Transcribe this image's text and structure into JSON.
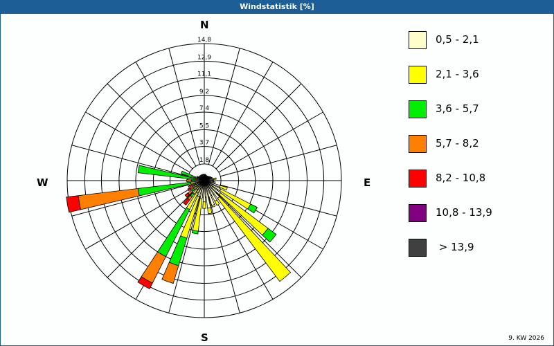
{
  "window": {
    "title": "Windstatistik [%]",
    "footer": "9. KW 2026"
  },
  "compass": {
    "n": "N",
    "e": "E",
    "s": "S",
    "w": "W"
  },
  "legend": {
    "items": [
      {
        "label": "0,5 - 2,1",
        "color": "#ffffcc"
      },
      {
        "label": "2,1 - 3,6",
        "color": "#ffff00"
      },
      {
        "label": "3,6 - 5,7",
        "color": "#00ee00"
      },
      {
        "label": "5,7 - 8,2",
        "color": "#ff8000"
      },
      {
        "label": "8,2 - 10,8",
        "color": "#ff0000"
      },
      {
        "label": "10,8 - 13,9",
        "color": "#800080"
      },
      {
        "label": " > 13,9",
        "color": "#404040"
      }
    ]
  },
  "chart_data": {
    "type": "windrose",
    "title": "Windstatistik [%]",
    "subtitle": "9. KW 2026",
    "radial_unit": "%",
    "radial_ticks": [
      "1,8",
      "3,7",
      "5,5",
      "7,4",
      "9,2",
      "11,1",
      "12,9",
      "14,8"
    ],
    "radial_tick_values": [
      1.8,
      3.7,
      5.5,
      7.4,
      9.2,
      11.1,
      12.9,
      14.8
    ],
    "rmax": 14.8,
    "grid": true,
    "spokes_deg": 15,
    "direction_labels": [
      "N",
      "E",
      "S",
      "W"
    ],
    "legend_position": "right",
    "speed_classes": [
      "0,5 - 2,1",
      "2,1 - 3,6",
      "3,6 - 5,7",
      "5,7 - 8,2",
      "8,2 - 10,8",
      "10,8 - 13,9",
      "> 13,9"
    ],
    "note": "cumulative radius (%) per speed class, per direction in degrees clockwise from North",
    "directions": [
      {
        "deg": 0,
        "cumulative": [
          0.6,
          0.7,
          0.7,
          0.7,
          0.7,
          0.7,
          0.7
        ]
      },
      {
        "deg": 10,
        "cumulative": [
          0.6,
          0.7,
          0.7,
          0.7,
          0.7,
          0.7,
          0.7
        ]
      },
      {
        "deg": 20,
        "cumulative": [
          0.5,
          0.6,
          0.6,
          0.6,
          0.6,
          0.6,
          0.6
        ]
      },
      {
        "deg": 30,
        "cumulative": [
          0.5,
          0.6,
          0.6,
          0.6,
          0.6,
          0.6,
          0.6
        ]
      },
      {
        "deg": 40,
        "cumulative": [
          0.5,
          0.6,
          0.6,
          0.6,
          0.6,
          0.6,
          0.6
        ]
      },
      {
        "deg": 50,
        "cumulative": [
          0.6,
          0.7,
          0.7,
          0.7,
          0.7,
          0.7,
          0.7
        ]
      },
      {
        "deg": 60,
        "cumulative": [
          0.7,
          0.8,
          0.8,
          0.8,
          0.8,
          0.8,
          0.8
        ]
      },
      {
        "deg": 70,
        "cumulative": [
          0.8,
          0.9,
          0.9,
          0.9,
          0.9,
          0.9,
          0.9
        ]
      },
      {
        "deg": 80,
        "cumulative": [
          1.0,
          1.3,
          1.3,
          1.3,
          1.3,
          1.3,
          1.3
        ]
      },
      {
        "deg": 90,
        "cumulative": [
          0.9,
          1.0,
          1.0,
          1.0,
          1.0,
          1.0,
          1.0
        ]
      },
      {
        "deg": 100,
        "cumulative": [
          1.0,
          1.2,
          1.2,
          1.2,
          1.2,
          1.2,
          1.2
        ]
      },
      {
        "deg": 110,
        "cumulative": [
          1.8,
          2.6,
          2.6,
          2.6,
          2.6,
          2.6,
          2.6
        ]
      },
      {
        "deg": 120,
        "cumulative": [
          2.0,
          5.6,
          6.4,
          6.4,
          6.4,
          6.4,
          6.4
        ]
      },
      {
        "deg": 130,
        "cumulative": [
          2.2,
          8.6,
          9.7,
          9.7,
          9.7,
          9.7,
          9.7
        ]
      },
      {
        "deg": 140,
        "cumulative": [
          2.4,
          13.6,
          13.6,
          13.6,
          13.6,
          13.6,
          13.6
        ]
      },
      {
        "deg": 150,
        "cumulative": [
          2.5,
          3.0,
          3.0,
          3.0,
          3.0,
          3.0,
          3.0
        ]
      },
      {
        "deg": 160,
        "cumulative": [
          2.8,
          3.0,
          3.0,
          3.0,
          3.0,
          3.0,
          3.0
        ]
      },
      {
        "deg": 170,
        "cumulative": [
          3.0,
          3.6,
          3.6,
          3.6,
          3.6,
          3.6,
          3.6
        ]
      },
      {
        "deg": 180,
        "cumulative": [
          2.3,
          3.0,
          3.0,
          3.0,
          3.0,
          3.0,
          3.0
        ]
      },
      {
        "deg": 190,
        "cumulative": [
          2.0,
          5.5,
          5.8,
          5.8,
          5.8,
          5.8,
          5.8
        ]
      },
      {
        "deg": 200,
        "cumulative": [
          1.8,
          6.5,
          9.6,
          11.6,
          11.6,
          11.6,
          11.6
        ]
      },
      {
        "deg": 210,
        "cumulative": [
          1.5,
          3.5,
          9.2,
          12.4,
          13.1,
          13.1,
          13.1
        ]
      },
      {
        "deg": 220,
        "cumulative": [
          1.2,
          1.8,
          2.2,
          2.6,
          3.3,
          3.3,
          3.3
        ]
      },
      {
        "deg": 230,
        "cumulative": [
          1.0,
          1.4,
          1.7,
          2.2,
          2.6,
          2.6,
          2.6
        ]
      },
      {
        "deg": 240,
        "cumulative": [
          0.9,
          1.2,
          1.4,
          1.7,
          2.0,
          2.0,
          2.0
        ]
      },
      {
        "deg": 250,
        "cumulative": [
          0.8,
          1.0,
          1.2,
          1.4,
          1.7,
          1.7,
          1.7
        ]
      },
      {
        "deg": 260,
        "cumulative": [
          1.0,
          1.5,
          7.2,
          13.7,
          15.0,
          15.0,
          15.0
        ]
      },
      {
        "deg": 270,
        "cumulative": [
          0.8,
          1.0,
          1.4,
          1.9,
          1.9,
          1.9,
          1.9
        ]
      },
      {
        "deg": 280,
        "cumulative": [
          0.8,
          1.0,
          7.2,
          7.2,
          7.2,
          7.2,
          7.2
        ]
      },
      {
        "deg": 290,
        "cumulative": [
          0.8,
          1.0,
          2.6,
          2.6,
          2.6,
          2.6,
          2.6
        ]
      },
      {
        "deg": 300,
        "cumulative": [
          0.7,
          0.9,
          0.9,
          0.9,
          0.9,
          0.9,
          0.9
        ]
      },
      {
        "deg": 310,
        "cumulative": [
          0.6,
          0.7,
          0.7,
          0.7,
          0.7,
          0.7,
          0.7
        ]
      },
      {
        "deg": 320,
        "cumulative": [
          0.6,
          0.7,
          0.7,
          0.7,
          0.7,
          0.7,
          0.7
        ]
      },
      {
        "deg": 330,
        "cumulative": [
          0.6,
          0.7,
          0.7,
          0.7,
          0.7,
          0.7,
          0.7
        ]
      },
      {
        "deg": 340,
        "cumulative": [
          0.6,
          0.7,
          0.7,
          0.7,
          0.7,
          0.7,
          0.7
        ]
      },
      {
        "deg": 350,
        "cumulative": [
          0.6,
          0.7,
          0.7,
          0.7,
          0.7,
          0.7,
          0.7
        ]
      }
    ]
  }
}
